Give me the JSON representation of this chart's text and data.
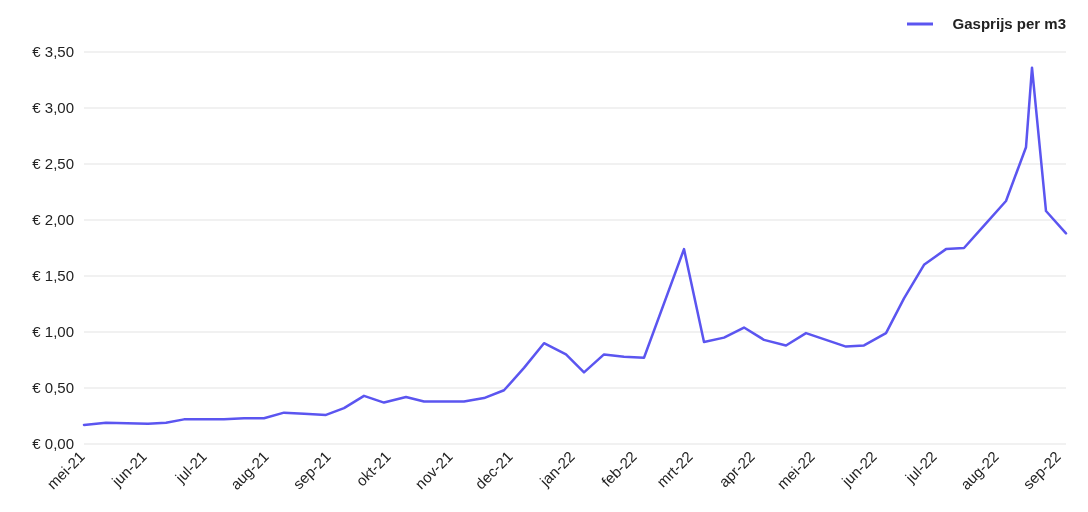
{
  "chart_data": {
    "type": "line",
    "legend": "top right",
    "grid": "y",
    "marker": "none",
    "line_style": "solid",
    "x": [
      "2021-05-01",
      "2021-05-12",
      "2021-06-02",
      "2021-06-11",
      "2021-06-20",
      "2021-07-02",
      "2021-07-10",
      "2021-07-20",
      "2021-07-30",
      "2021-08-09",
      "2021-08-19",
      "2021-08-30",
      "2021-09-08",
      "2021-09-18",
      "2021-09-28",
      "2021-10-09",
      "2021-10-18",
      "2021-10-28",
      "2021-11-07",
      "2021-11-17",
      "2021-11-27",
      "2021-12-07",
      "2021-12-17",
      "2021-12-28",
      "2022-01-06",
      "2022-01-16",
      "2022-01-26",
      "2022-02-05",
      "2022-02-25",
      "2022-03-07",
      "2022-03-17",
      "2022-03-27",
      "2022-04-06",
      "2022-04-17",
      "2022-04-27",
      "2022-05-07",
      "2022-05-17",
      "2022-05-26",
      "2022-06-06",
      "2022-06-15",
      "2022-06-25",
      "2022-07-06",
      "2022-07-15",
      "2022-07-25",
      "2022-08-05",
      "2022-08-15",
      "2022-08-18",
      "2022-08-25",
      "2022-09-04"
    ],
    "series": [
      {
        "name": "Gasprijs per m3",
        "color": "#5b55f0",
        "values": [
          0.17,
          0.19,
          0.18,
          0.19,
          0.22,
          0.22,
          0.22,
          0.23,
          0.23,
          0.28,
          0.27,
          0.26,
          0.32,
          0.43,
          0.37,
          0.42,
          0.38,
          0.38,
          0.38,
          0.41,
          0.48,
          0.68,
          0.9,
          0.8,
          0.64,
          0.8,
          0.78,
          0.77,
          1.74,
          0.91,
          0.95,
          1.04,
          0.93,
          0.88,
          0.99,
          0.93,
          0.87,
          0.88,
          0.99,
          1.3,
          1.6,
          1.74,
          1.75,
          1.95,
          2.17,
          2.65,
          3.36,
          2.08,
          1.88
        ]
      }
    ],
    "xlim": [
      "2021-05-01",
      "2022-09-04"
    ],
    "xticks": [
      {
        "value": "2021-05-01",
        "label": "mei-21"
      },
      {
        "value": "2021-06-01",
        "label": "jun-21"
      },
      {
        "value": "2021-07-01",
        "label": "jul-21"
      },
      {
        "value": "2021-08-01",
        "label": "aug-21"
      },
      {
        "value": "2021-09-01",
        "label": "sep-21"
      },
      {
        "value": "2021-10-01",
        "label": "okt-21"
      },
      {
        "value": "2021-11-01",
        "label": "nov-21"
      },
      {
        "value": "2021-12-01",
        "label": "dec-21"
      },
      {
        "value": "2022-01-01",
        "label": "jan-22"
      },
      {
        "value": "2022-02-01",
        "label": "feb-22"
      },
      {
        "value": "2022-03-01",
        "label": "mrt-22"
      },
      {
        "value": "2022-04-01",
        "label": "apr-22"
      },
      {
        "value": "2022-05-01",
        "label": "mei-22"
      },
      {
        "value": "2022-06-01",
        "label": "jun-22"
      },
      {
        "value": "2022-07-01",
        "label": "jul-22"
      },
      {
        "value": "2022-08-01",
        "label": "aug-22"
      },
      {
        "value": "2022-09-01",
        "label": "sep-22"
      }
    ],
    "ylim": [
      0,
      3.5
    ],
    "yticks": [
      {
        "value": 0,
        "label": "€ 0,00"
      },
      {
        "value": 0.5,
        "label": "€ 0,50"
      },
      {
        "value": 1,
        "label": "€ 1,00"
      },
      {
        "value": 1.5,
        "label": "€ 1,50"
      },
      {
        "value": 2,
        "label": "€ 2,00"
      },
      {
        "value": 2.5,
        "label": "€ 2,50"
      },
      {
        "value": 3,
        "label": "€ 3,00"
      },
      {
        "value": 3.5,
        "label": "€ 3,50"
      }
    ]
  }
}
